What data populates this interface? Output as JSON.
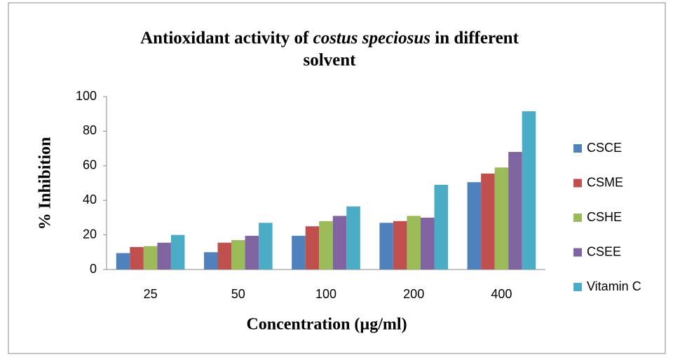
{
  "chart_data": {
    "type": "bar",
    "title": [
      "Antioxidant activity of",
      "costus speciosus",
      "in different",
      "solvent"
    ],
    "x_label": "Concentration (µg/ml)",
    "y_label": "% Inhibition",
    "categories": [
      "25",
      "50",
      "100",
      "200",
      "400"
    ],
    "series": [
      {
        "name": "CSCE",
        "color": "#4f81bd",
        "values": [
          9.5,
          10,
          19.5,
          27,
          50.5
        ]
      },
      {
        "name": "CSME",
        "color": "#c0504d",
        "values": [
          13,
          15.5,
          25,
          28,
          55.5
        ]
      },
      {
        "name": "CSHE",
        "color": "#9bbb59",
        "values": [
          13.5,
          17,
          28,
          31,
          59
        ]
      },
      {
        "name": "CSEE",
        "color": "#8064a2",
        "values": [
          15.5,
          19.5,
          31,
          30,
          68
        ]
      },
      {
        "name": "Vitamin C",
        "color": "#4bacc6",
        "values": [
          20,
          27,
          36.5,
          49,
          91.5
        ]
      }
    ],
    "ylim": [
      0,
      100
    ],
    "yticks": [
      0,
      20,
      40,
      60,
      80,
      100
    ],
    "grid": false,
    "legend": "right"
  }
}
